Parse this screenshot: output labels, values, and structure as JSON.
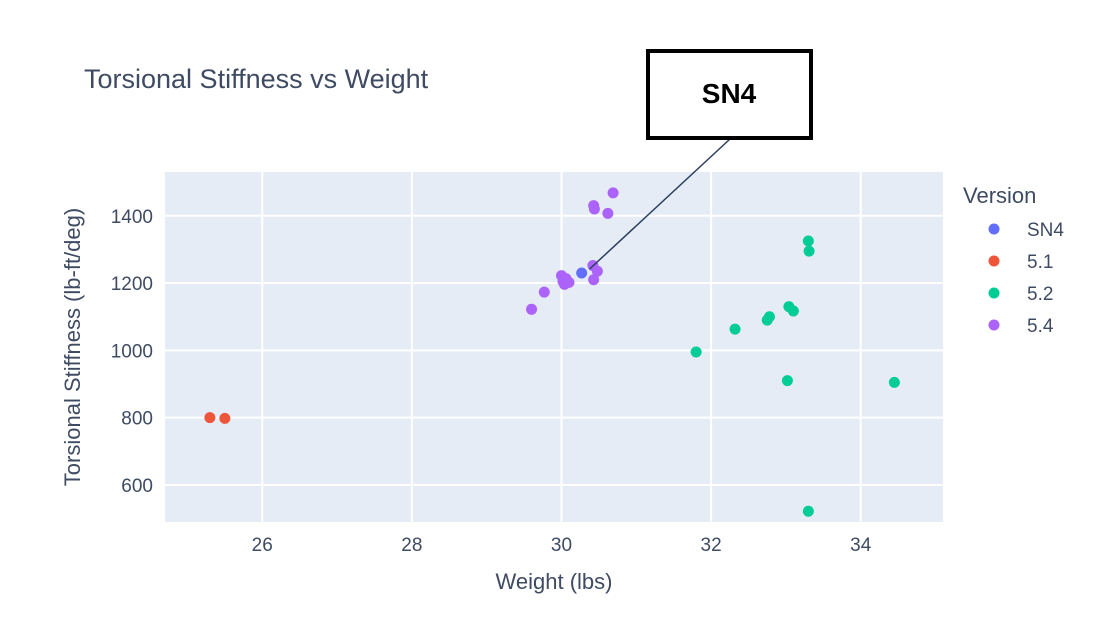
{
  "chart_data": {
    "type": "scatter",
    "title": "Torsional Stiffness vs Weight",
    "xlabel": "Weight (lbs)",
    "ylabel": "Torsional Stiffness (lb-ft/deg)",
    "xlim": [
      24.7,
      35.1
    ],
    "ylim": [
      490,
      1530
    ],
    "xticks": [
      26,
      28,
      30,
      32,
      34
    ],
    "yticks": [
      600,
      800,
      1000,
      1200,
      1400
    ],
    "grid": true,
    "plot_bg": "#e5ecf6",
    "legend": {
      "title": "Version",
      "position": "right"
    },
    "series": [
      {
        "name": "SN4",
        "color": "#636efa",
        "points": [
          [
            30.27,
            1230
          ]
        ]
      },
      {
        "name": "5.1",
        "color": "#ef553b",
        "points": [
          [
            25.3,
            800
          ],
          [
            25.5,
            798
          ]
        ]
      },
      {
        "name": "5.2",
        "color": "#00cc96",
        "points": [
          [
            31.8,
            995
          ],
          [
            32.32,
            1063
          ],
          [
            32.75,
            1090
          ],
          [
            32.78,
            1100
          ],
          [
            33.02,
            910
          ],
          [
            33.04,
            1130
          ],
          [
            33.1,
            1117
          ],
          [
            33.3,
            1325
          ],
          [
            33.31,
            1295
          ],
          [
            33.3,
            522
          ],
          [
            34.45,
            905
          ]
        ]
      },
      {
        "name": "5.4",
        "color": "#ab63fa",
        "points": [
          [
            29.6,
            1122
          ],
          [
            29.77,
            1173
          ],
          [
            30.0,
            1222
          ],
          [
            30.02,
            1205
          ],
          [
            30.04,
            1196
          ],
          [
            30.06,
            1213
          ],
          [
            30.1,
            1202
          ],
          [
            30.42,
            1252
          ],
          [
            30.43,
            1210
          ],
          [
            30.48,
            1235
          ],
          [
            30.43,
            1430
          ],
          [
            30.44,
            1420
          ],
          [
            30.62,
            1407
          ],
          [
            30.69,
            1468
          ]
        ]
      }
    ]
  },
  "annotation": {
    "text": "SN4",
    "target": [
      30.27,
      1230
    ]
  }
}
